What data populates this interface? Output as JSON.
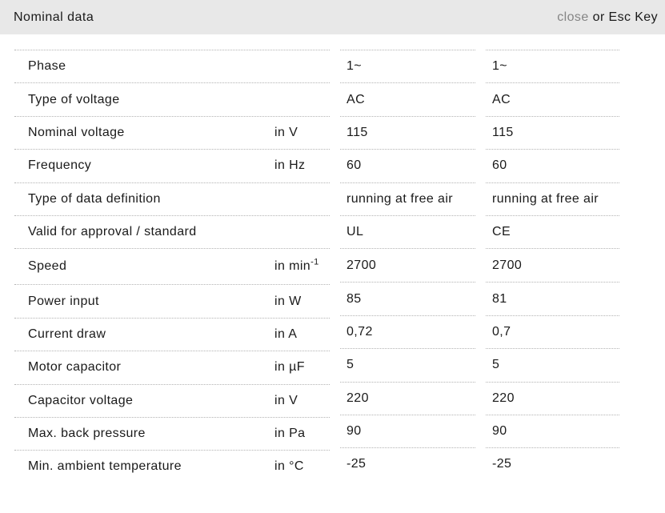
{
  "header": {
    "title": "Nominal data",
    "close_label": "close",
    "close_suffix": "or Esc Key"
  },
  "colors": {
    "header_bg": "#e8e8e8",
    "close_link_gray": "#858585",
    "text": "#1a1a1a",
    "divider_dotted": "#b3b3b3"
  },
  "table": {
    "rows": [
      {
        "label": "Phase",
        "unit": "",
        "value1": "1~",
        "value2": "1~"
      },
      {
        "label": "Type of voltage",
        "unit": "",
        "value1": "AC",
        "value2": "AC"
      },
      {
        "label": "Nominal voltage",
        "unit": "in V",
        "value1": "115",
        "value2": "115"
      },
      {
        "label": "Frequency",
        "unit": "in Hz",
        "value1": "60",
        "value2": "60"
      },
      {
        "label": "Type of data definition",
        "unit": "",
        "value1": "running at free air",
        "value2": "running at free air"
      },
      {
        "label": "Valid for approval / standard",
        "unit": "",
        "value1": "UL",
        "value2": "CE"
      },
      {
        "label": "Speed",
        "unit": "in min",
        "unit_sup": "-1",
        "value1": "2700",
        "value2": "2700"
      },
      {
        "label": "Power input",
        "unit": "in W",
        "value1": "85",
        "value2": "81"
      },
      {
        "label": "Current draw",
        "unit": "in A",
        "value1": "0,72",
        "value2": "0,7"
      },
      {
        "label": "Motor capacitor",
        "unit": "in µF",
        "value1": "5",
        "value2": "5"
      },
      {
        "label": "Capacitor voltage",
        "unit": "in V",
        "value1": "220",
        "value2": "220"
      },
      {
        "label": "Max. back pressure",
        "unit": "in Pa",
        "value1": "90",
        "value2": "90"
      },
      {
        "label": "Min. ambient temperature",
        "unit": "in °C",
        "value1": "-25",
        "value2": "-25"
      }
    ]
  }
}
